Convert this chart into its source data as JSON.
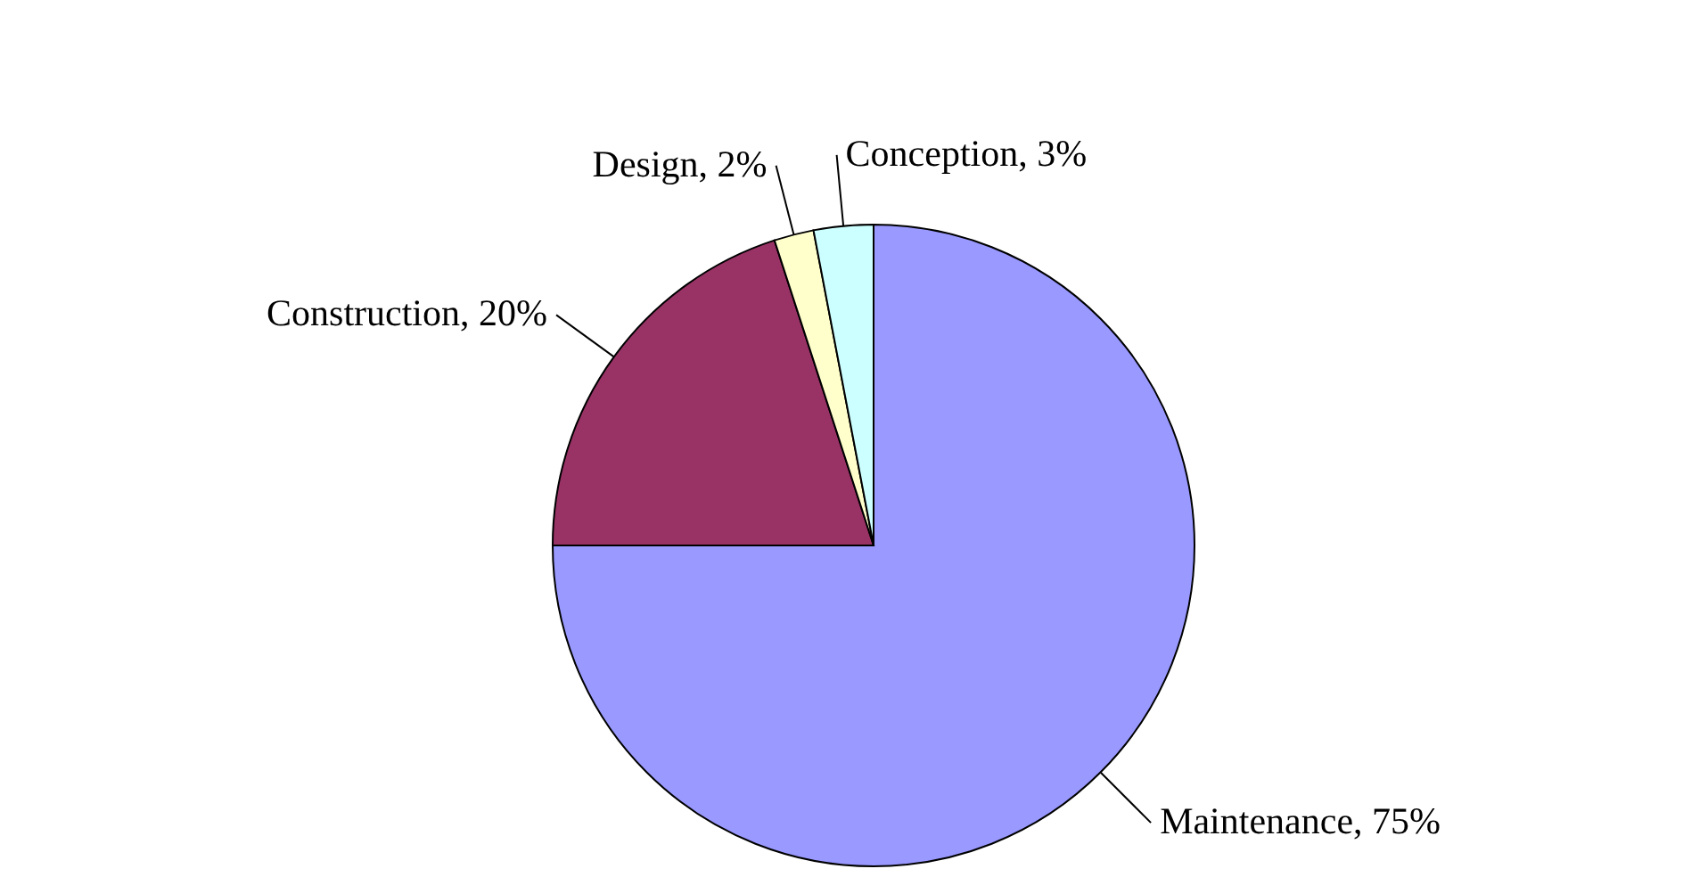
{
  "chart_data": {
    "type": "pie",
    "categories": [
      "Maintenance",
      "Construction",
      "Design",
      "Conception"
    ],
    "values": [
      75,
      20,
      2,
      3
    ],
    "colors": [
      "#9999ff",
      "#993366",
      "#ffffcc",
      "#ccffff"
    ],
    "value_labels": [
      "75%",
      "20%",
      "2%",
      "3%"
    ]
  }
}
